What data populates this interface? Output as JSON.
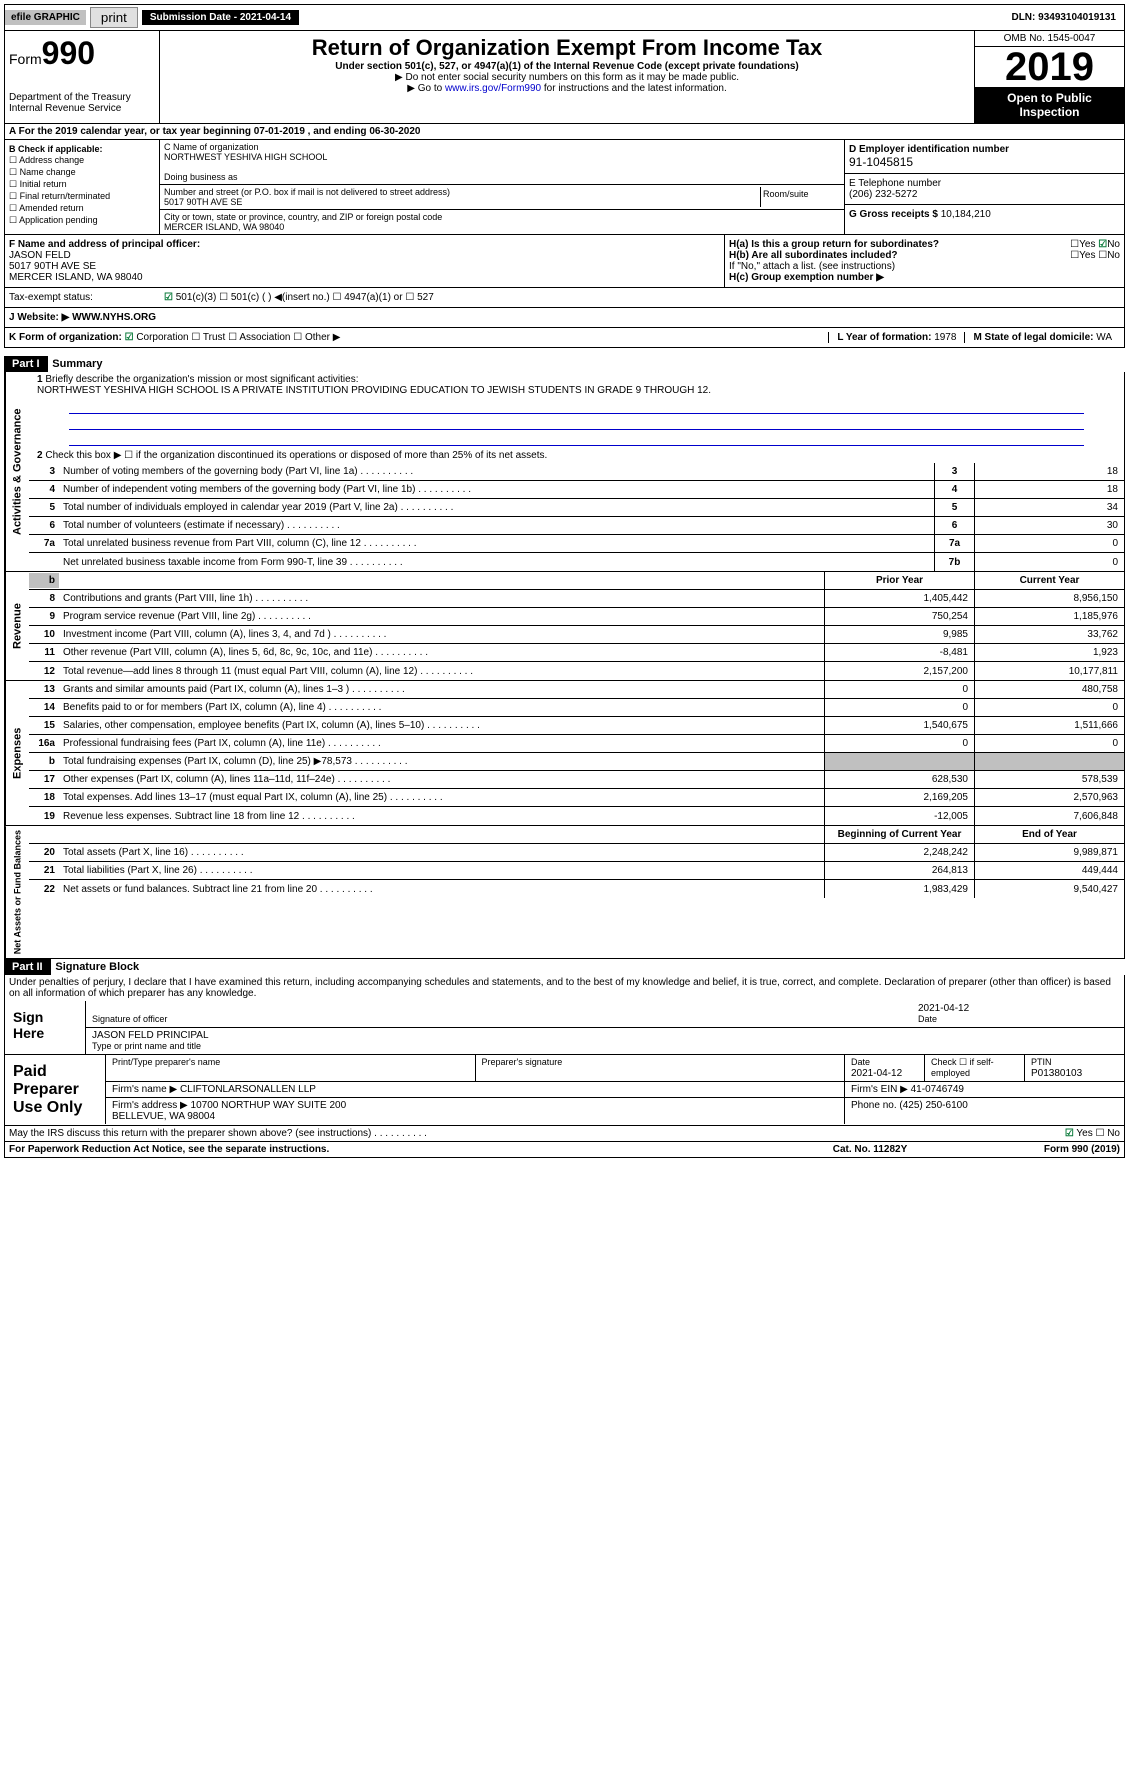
{
  "topbar": {
    "efile": "efile GRAPHIC",
    "print": "print",
    "subdate_label": "Submission Date - 2021-04-14",
    "dln": "DLN: 93493104019131"
  },
  "header": {
    "form_prefix": "Form",
    "form_num": "990",
    "title": "Return of Organization Exempt From Income Tax",
    "subtitle": "Under section 501(c), 527, or 4947(a)(1) of the Internal Revenue Code (except private foundations)",
    "note1": "▶ Do not enter social security numbers on this form as it may be made public.",
    "note2_pre": "▶ Go to ",
    "note2_link": "www.irs.gov/Form990",
    "note2_post": " for instructions and the latest information.",
    "dept": "Department of the Treasury\nInternal Revenue Service",
    "omb": "OMB No. 1545-0047",
    "year": "2019",
    "inspect": "Open to Public Inspection"
  },
  "period": "A For the 2019 calendar year, or tax year beginning 07-01-2019    , and ending 06-30-2020",
  "checkB": {
    "label": "B Check if applicable:",
    "opts": [
      "Address change",
      "Name change",
      "Initial return",
      "Final return/terminated",
      "Amended return",
      "Application pending"
    ]
  },
  "orgC": {
    "name_label": "C Name of organization",
    "name": "NORTHWEST YESHIVA HIGH SCHOOL",
    "dba_label": "Doing business as",
    "addr_label": "Number and street (or P.O. box if mail is not delivered to street address)",
    "room_label": "Room/suite",
    "addr": "5017 90TH AVE SE",
    "city_label": "City or town, state or province, country, and ZIP or foreign postal code",
    "city": "MERCER ISLAND, WA  98040"
  },
  "colD": {
    "ein_label": "D Employer identification number",
    "ein": "91-1045815",
    "phone_label": "E Telephone number",
    "phone": "(206) 232-5272",
    "gross_label": "G Gross receipts $ ",
    "gross": "10,184,210"
  },
  "sectionF": {
    "label": "F Name and address of principal officer:",
    "name": "JASON FELD",
    "addr1": "5017 90TH AVE SE",
    "addr2": "MERCER ISLAND, WA  98040"
  },
  "sectionH": {
    "ha": "H(a) Is this a group return for subordinates?",
    "hb": "H(b) Are all subordinates included?",
    "hb_note": "If \"No,\" attach a list. (see instructions)",
    "hc": "H(c) Group exemption number ▶"
  },
  "taxstatus": {
    "label": "Tax-exempt status:",
    "opts": [
      "501(c)(3)",
      "501(c) (  ) ◀(insert no.)",
      "4947(a)(1) or",
      "527"
    ]
  },
  "website": {
    "label": "J   Website: ▶",
    "val": "WWW.NYHS.ORG"
  },
  "rowK": {
    "label": "K Form of organization:",
    "opts": [
      "Corporation",
      "Trust",
      "Association",
      "Other ▶"
    ],
    "year_label": "L Year of formation: ",
    "year": "1978",
    "state_label": "M State of legal domicile: ",
    "state": "WA"
  },
  "part1": {
    "header": "Part I",
    "title": "Summary",
    "line1": "Briefly describe the organization's mission or most significant activities:",
    "mission": "NORTHWEST YESHIVA HIGH SCHOOL IS A PRIVATE INSTITUTION PROVIDING EDUCATION TO JEWISH STUDENTS IN GRADE 9 THROUGH 12.",
    "line2": "Check this box ▶ ☐ if the organization discontinued its operations or disposed of more than 25% of its net assets.",
    "governance": [
      {
        "n": "3",
        "d": "Number of voting members of the governing body (Part VI, line 1a)",
        "b": "3",
        "v": "18"
      },
      {
        "n": "4",
        "d": "Number of independent voting members of the governing body (Part VI, line 1b)",
        "b": "4",
        "v": "18"
      },
      {
        "n": "5",
        "d": "Total number of individuals employed in calendar year 2019 (Part V, line 2a)",
        "b": "5",
        "v": "34"
      },
      {
        "n": "6",
        "d": "Total number of volunteers (estimate if necessary)",
        "b": "6",
        "v": "30"
      },
      {
        "n": "7a",
        "d": "Total unrelated business revenue from Part VIII, column (C), line 12",
        "b": "7a",
        "v": "0"
      },
      {
        "n": "",
        "d": "Net unrelated business taxable income from Form 990-T, line 39",
        "b": "7b",
        "v": "0"
      }
    ],
    "col_prior": "Prior Year",
    "col_current": "Current Year",
    "revenue": [
      {
        "n": "8",
        "d": "Contributions and grants (Part VIII, line 1h)",
        "p": "1,405,442",
        "c": "8,956,150"
      },
      {
        "n": "9",
        "d": "Program service revenue (Part VIII, line 2g)",
        "p": "750,254",
        "c": "1,185,976"
      },
      {
        "n": "10",
        "d": "Investment income (Part VIII, column (A), lines 3, 4, and 7d )",
        "p": "9,985",
        "c": "33,762"
      },
      {
        "n": "11",
        "d": "Other revenue (Part VIII, column (A), lines 5, 6d, 8c, 9c, 10c, and 11e)",
        "p": "-8,481",
        "c": "1,923"
      },
      {
        "n": "12",
        "d": "Total revenue—add lines 8 through 11 (must equal Part VIII, column (A), line 12)",
        "p": "2,157,200",
        "c": "10,177,811"
      }
    ],
    "expenses": [
      {
        "n": "13",
        "d": "Grants and similar amounts paid (Part IX, column (A), lines 1–3 )",
        "p": "0",
        "c": "480,758"
      },
      {
        "n": "14",
        "d": "Benefits paid to or for members (Part IX, column (A), line 4)",
        "p": "0",
        "c": "0"
      },
      {
        "n": "15",
        "d": "Salaries, other compensation, employee benefits (Part IX, column (A), lines 5–10)",
        "p": "1,540,675",
        "c": "1,511,666"
      },
      {
        "n": "16a",
        "d": "Professional fundraising fees (Part IX, column (A), line 11e)",
        "p": "0",
        "c": "0"
      },
      {
        "n": "b",
        "d": "Total fundraising expenses (Part IX, column (D), line 25) ▶78,573",
        "p": "",
        "c": "",
        "shaded": true
      },
      {
        "n": "17",
        "d": "Other expenses (Part IX, column (A), lines 11a–11d, 11f–24e)",
        "p": "628,530",
        "c": "578,539"
      },
      {
        "n": "18",
        "d": "Total expenses. Add lines 13–17 (must equal Part IX, column (A), line 25)",
        "p": "2,169,205",
        "c": "2,570,963"
      },
      {
        "n": "19",
        "d": "Revenue less expenses. Subtract line 18 from line 12",
        "p": "-12,005",
        "c": "7,606,848"
      }
    ],
    "col_begin": "Beginning of Current Year",
    "col_end": "End of Year",
    "netassets": [
      {
        "n": "20",
        "d": "Total assets (Part X, line 16)",
        "p": "2,248,242",
        "c": "9,989,871"
      },
      {
        "n": "21",
        "d": "Total liabilities (Part X, line 26)",
        "p": "264,813",
        "c": "449,444"
      },
      {
        "n": "22",
        "d": "Net assets or fund balances. Subtract line 21 from line 20",
        "p": "1,983,429",
        "c": "9,540,427"
      }
    ]
  },
  "part2": {
    "header": "Part II",
    "title": "Signature Block",
    "perjury": "Under penalties of perjury, I declare that I have examined this return, including accompanying schedules and statements, and to the best of my knowledge and belief, it is true, correct, and complete. Declaration of preparer (other than officer) is based on all information of which preparer has any knowledge."
  },
  "sign": {
    "label": "Sign Here",
    "sig_label": "Signature of officer",
    "date": "2021-04-12",
    "date_label": "Date",
    "name": "JASON FELD  PRINCIPAL",
    "name_label": "Type or print name and title"
  },
  "paid": {
    "label": "Paid Preparer Use Only",
    "h1": "Print/Type preparer's name",
    "h2": "Preparer's signature",
    "h3": "Date",
    "date": "2021-04-12",
    "h4": "Check ☐ if self-employed",
    "h5": "PTIN",
    "ptin": "P01380103",
    "firm_label": "Firm's name    ▶",
    "firm": "CLIFTONLARSONALLEN LLP",
    "ein_label": "Firm's EIN ▶",
    "ein": "41-0746749",
    "addr_label": "Firm's address ▶",
    "addr": "10700 NORTHUP WAY SUITE 200\nBELLEVUE, WA  98004",
    "phone_label": "Phone no. ",
    "phone": "(425) 250-6100"
  },
  "footer": {
    "discuss": "May the IRS discuss this return with the preparer shown above? (see instructions)",
    "paperwork": "For Paperwork Reduction Act Notice, see the separate instructions.",
    "cat": "Cat. No. 11282Y",
    "form": "Form 990 (2019)"
  },
  "sidelabels": {
    "gov": "Activities & Governance",
    "rev": "Revenue",
    "exp": "Expenses",
    "net": "Net Assets or Fund Balances"
  }
}
